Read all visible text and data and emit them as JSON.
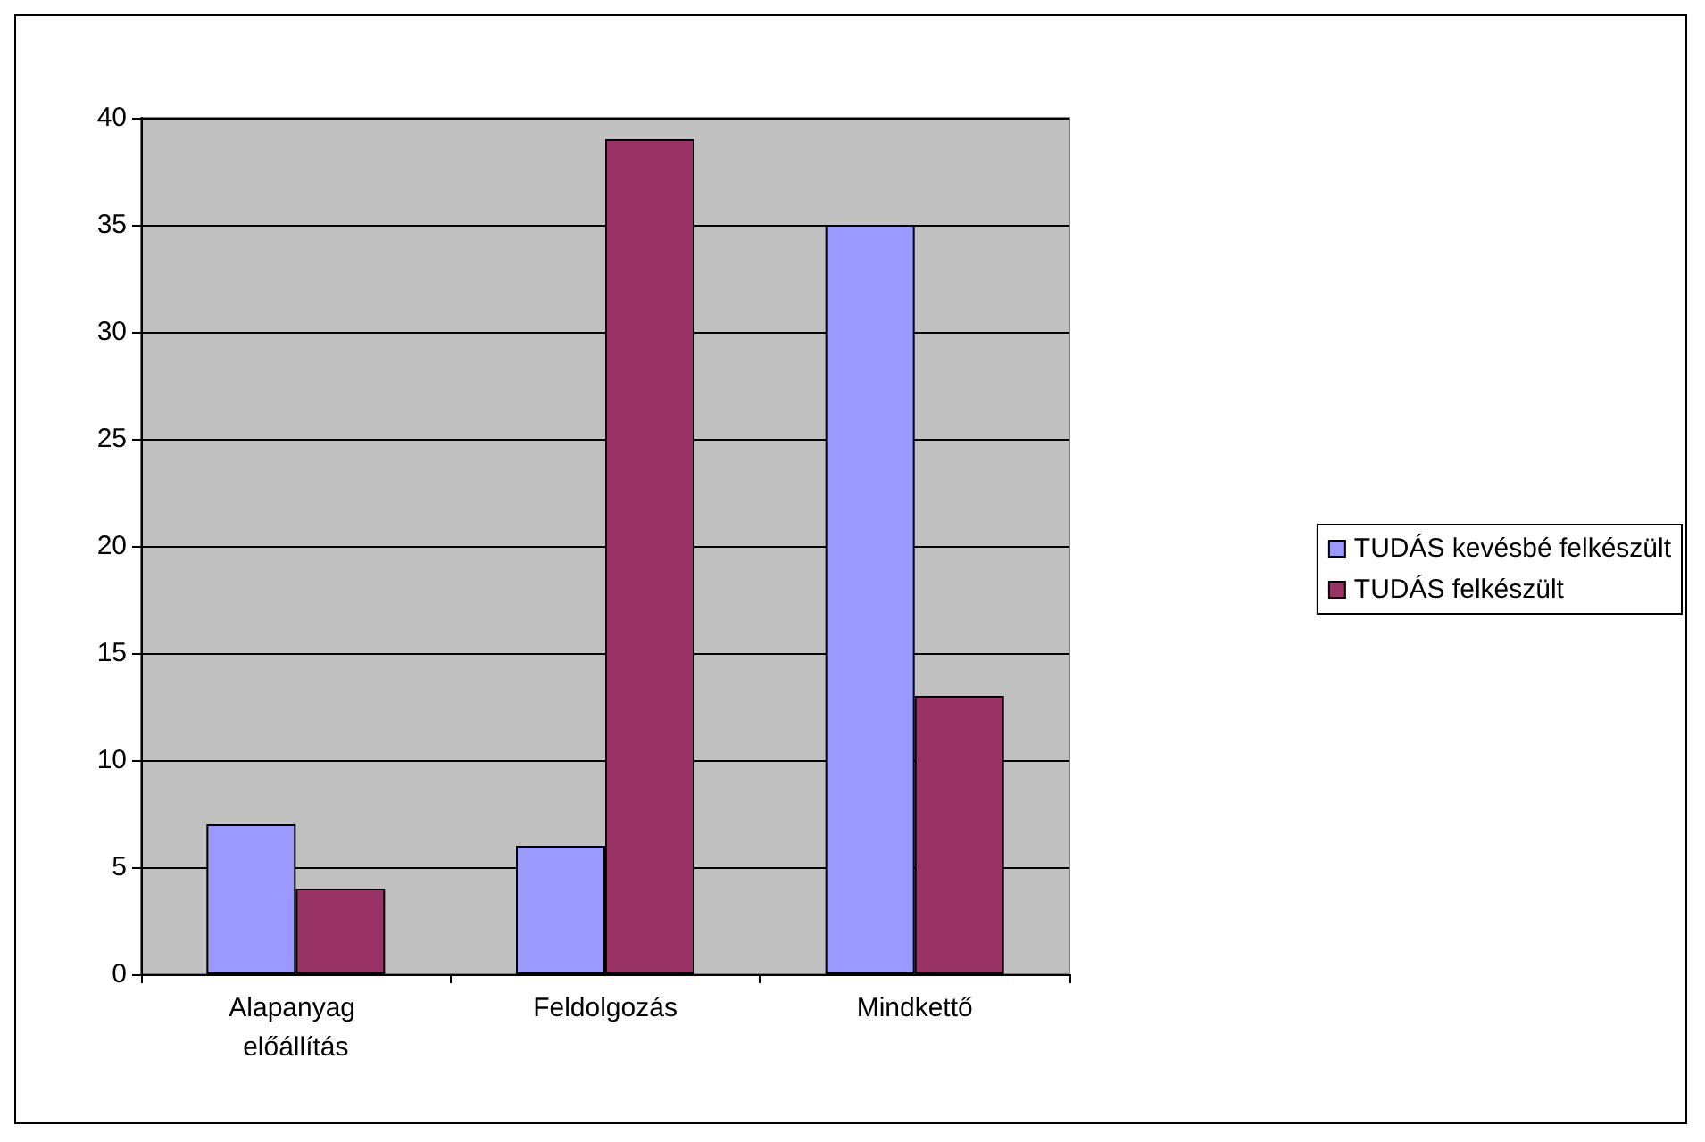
{
  "chart_data": {
    "type": "bar",
    "categories": [
      "Alapanyag előállítás",
      "Feldolgozás",
      "Mindkettő"
    ],
    "series": [
      {
        "name": "TUDÁS kevésbé felkészült",
        "color": "#9999ff",
        "values": [
          7,
          6,
          35
        ]
      },
      {
        "name": "TUDÁS felkészült",
        "color": "#993366",
        "values": [
          4,
          39,
          13
        ]
      }
    ],
    "ylim": [
      0,
      40
    ],
    "yticks": [
      0,
      5,
      10,
      15,
      20,
      25,
      30,
      35,
      40
    ],
    "grid": "y",
    "legend": "right"
  }
}
